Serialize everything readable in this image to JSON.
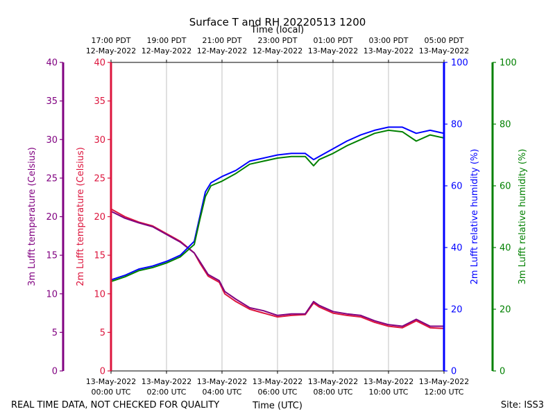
{
  "chart_data": {
    "type": "line",
    "title": "Surface T and RH 20220513 1200",
    "top_axis_label": "Time (local)",
    "xlabel": "Time (UTC)",
    "footer_left": "REAL TIME DATA, NOT CHECKED FOR QUALITY",
    "footer_right": "Site: ISS3",
    "x_range_hours_utc": [
      0,
      12
    ],
    "bottom_ticks": [
      {
        "hour": 0,
        "line1": "13-May-2022",
        "line2": "00:00 UTC"
      },
      {
        "hour": 2,
        "line1": "13-May-2022",
        "line2": "02:00 UTC"
      },
      {
        "hour": 4,
        "line1": "13-May-2022",
        "line2": "04:00 UTC"
      },
      {
        "hour": 6,
        "line1": "13-May-2022",
        "line2": "06:00 UTC"
      },
      {
        "hour": 8,
        "line1": "13-May-2022",
        "line2": "08:00 UTC"
      },
      {
        "hour": 10,
        "line1": "13-May-2022",
        "line2": "10:00 UTC"
      },
      {
        "hour": 12,
        "line1": "13-May-2022",
        "line2": "12:00 UTC"
      }
    ],
    "top_ticks": [
      {
        "hour": 0,
        "line1": "17:00 PDT",
        "line2": "12-May-2022"
      },
      {
        "hour": 2,
        "line1": "19:00 PDT",
        "line2": "12-May-2022"
      },
      {
        "hour": 4,
        "line1": "21:00 PDT",
        "line2": "12-May-2022"
      },
      {
        "hour": 6,
        "line1": "23:00 PDT",
        "line2": "12-May-2022"
      },
      {
        "hour": 8,
        "line1": "01:00 PDT",
        "line2": "13-May-2022"
      },
      {
        "hour": 10,
        "line1": "03:00 PDT",
        "line2": "13-May-2022"
      },
      {
        "hour": 12,
        "line1": "05:00 PDT",
        "line2": "13-May-2022"
      }
    ],
    "axes": {
      "temp3m": {
        "label": "3m Lufft temperature (Celsius)",
        "range": [
          0,
          40
        ],
        "ticks": [
          0,
          5,
          10,
          15,
          20,
          25,
          30,
          35,
          40
        ],
        "color": "#800080"
      },
      "temp2m": {
        "label": "2m Lufft temperature (Celsius)",
        "range": [
          0,
          40
        ],
        "ticks": [
          0,
          5,
          10,
          15,
          20,
          25,
          30,
          35,
          40
        ],
        "color": "#dc143c"
      },
      "rh2m": {
        "label": "2m Lufft relative humidity (%)",
        "range": [
          0,
          100
        ],
        "ticks": [
          0,
          20,
          40,
          60,
          80,
          100
        ],
        "color": "#0000ff"
      },
      "rh3m": {
        "label": "3m Lufft relative humidity (%)",
        "range": [
          0,
          100
        ],
        "ticks": [
          0,
          20,
          40,
          60,
          80,
          100
        ],
        "color": "#008000"
      }
    },
    "series": [
      {
        "name": "2m Lufft temperature",
        "axis": "temp2m",
        "color": "#dc143c",
        "x": [
          0,
          0.5,
          1,
          1.5,
          2,
          2.5,
          3,
          3.2,
          3.5,
          3.9,
          4.1,
          4.5,
          5,
          5.5,
          6,
          6.5,
          7,
          7.3,
          7.5,
          8,
          8.5,
          9,
          9.5,
          10,
          10.5,
          11,
          11.5,
          12
        ],
        "values": [
          21.0,
          20.0,
          19.3,
          18.8,
          17.8,
          16.8,
          15.3,
          14.0,
          12.3,
          11.5,
          10.0,
          9.0,
          8.0,
          7.5,
          7.0,
          7.2,
          7.3,
          8.8,
          8.3,
          7.5,
          7.2,
          7.0,
          6.3,
          5.8,
          5.6,
          6.5,
          5.6,
          5.5
        ]
      },
      {
        "name": "3m Lufft temperature",
        "axis": "temp3m",
        "color": "#800080",
        "x": [
          0,
          0.5,
          1,
          1.5,
          2,
          2.5,
          3,
          3.2,
          3.5,
          3.9,
          4.1,
          4.5,
          5,
          5.5,
          6,
          6.5,
          7,
          7.3,
          7.5,
          8,
          8.5,
          9,
          9.5,
          10,
          10.5,
          11,
          11.5,
          12
        ],
        "values": [
          20.7,
          19.8,
          19.2,
          18.7,
          17.7,
          16.7,
          15.3,
          14.2,
          12.5,
          11.7,
          10.3,
          9.3,
          8.2,
          7.8,
          7.2,
          7.4,
          7.4,
          9.0,
          8.5,
          7.7,
          7.4,
          7.2,
          6.5,
          6.0,
          5.8,
          6.7,
          5.8,
          5.8
        ]
      },
      {
        "name": "2m Lufft relative humidity",
        "axis": "rh2m",
        "color": "#0000ff",
        "x": [
          0,
          0.5,
          1,
          1.5,
          2,
          2.5,
          3,
          3.2,
          3.4,
          3.6,
          4,
          4.5,
          5,
          5.5,
          6,
          6.5,
          7,
          7.3,
          7.5,
          8,
          8.5,
          9,
          9.5,
          10,
          10.5,
          11,
          11.5,
          12
        ],
        "values": [
          29.5,
          31.0,
          33.0,
          34.0,
          35.5,
          37.5,
          42.0,
          50.0,
          58.0,
          61.0,
          63.0,
          65.0,
          68.0,
          69.0,
          70.0,
          70.5,
          70.5,
          68.5,
          69.5,
          72.0,
          74.5,
          76.5,
          78.0,
          79.0,
          79.0,
          77.0,
          78.0,
          77.0
        ]
      },
      {
        "name": "3m Lufft relative humidity",
        "axis": "rh3m",
        "color": "#008000",
        "x": [
          0,
          0.5,
          1,
          1.5,
          2,
          2.5,
          3,
          3.2,
          3.4,
          3.6,
          4,
          4.5,
          5,
          5.5,
          6,
          6.5,
          7,
          7.3,
          7.5,
          8,
          8.5,
          9,
          9.5,
          10,
          10.5,
          11,
          11.5,
          12
        ],
        "values": [
          29.0,
          30.5,
          32.5,
          33.5,
          35.0,
          37.0,
          41.0,
          49.0,
          56.5,
          60.0,
          61.5,
          64.0,
          67.0,
          68.0,
          69.0,
          69.5,
          69.5,
          66.5,
          68.5,
          70.5,
          73.0,
          75.0,
          77.0,
          78.0,
          77.5,
          74.5,
          76.5,
          75.5
        ]
      }
    ]
  }
}
